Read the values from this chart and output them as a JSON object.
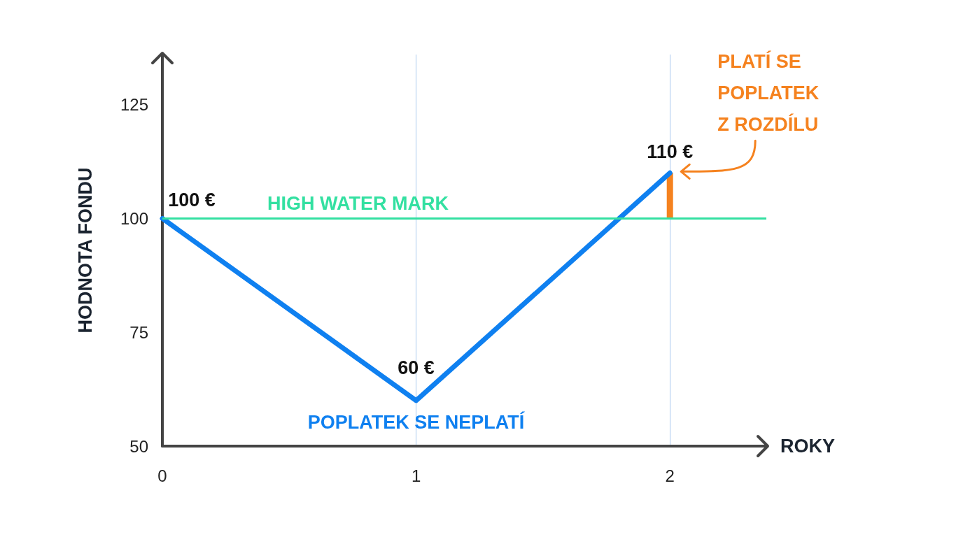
{
  "chart_data": {
    "type": "line",
    "xlabel": "ROKY",
    "ylabel": "HODNOTA FONDU",
    "xlim": [
      0,
      2.38
    ],
    "ylim": [
      50,
      136
    ],
    "xticks": [
      0,
      1,
      2
    ],
    "yticks": [
      50,
      75,
      100,
      125
    ],
    "grid": "x",
    "marker": "none",
    "line_style": "solid",
    "series": [
      {
        "color": "#0f80f0",
        "x": [
          0,
          1,
          2
        ],
        "values": [
          100,
          60,
          110
        ],
        "value_labels": [
          "100 €",
          "60 €",
          "110 €"
        ]
      },
      {
        "color": "#f5821f",
        "x": [
          2,
          2
        ],
        "values": [
          100,
          110
        ]
      }
    ],
    "ref_lines": [
      {
        "axis": "y",
        "value": 100,
        "label": "HIGH WATER MARK",
        "color": "#33e0a1"
      }
    ],
    "annotations": [
      {
        "text": "POPLATEK SE NEPLATÍ",
        "x": 1,
        "y": 60
      },
      "PLATÍ SE\nPOPLATEK\nZ ROZDÍLU"
    ]
  }
}
